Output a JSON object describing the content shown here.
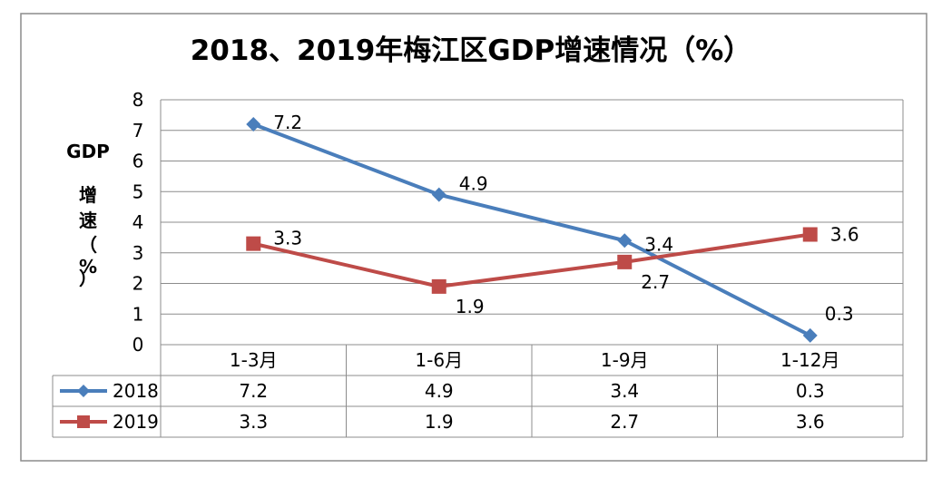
{
  "chart_data": {
    "type": "line",
    "title": "2018、2019年梅江区GDP增速情况（%）",
    "ylabel_lines": [
      "GDP",
      "增",
      "速",
      "（",
      "%",
      "）"
    ],
    "xlabel": "",
    "categories": [
      "1-3月",
      "1-6月",
      "1-9月",
      "1-12月"
    ],
    "ylim": [
      0,
      8
    ],
    "yticks": [
      "0",
      "1",
      "2",
      "3",
      "4",
      "5",
      "6",
      "7",
      "8"
    ],
    "grid": true,
    "legend_placement": "data-table",
    "series": [
      {
        "name": "2018",
        "values": [
          7.2,
          4.9,
          3.4,
          0.3
        ],
        "labels": [
          "7.2",
          "4.9",
          "3.4",
          "0.3"
        ],
        "color": "#4a7ebb",
        "marker": "diamond"
      },
      {
        "name": "2019",
        "values": [
          3.3,
          1.9,
          2.7,
          3.6
        ],
        "labels": [
          "3.3",
          "1.9",
          "2.7",
          "3.6"
        ],
        "color": "#be4b48",
        "marker": "square"
      }
    ]
  }
}
